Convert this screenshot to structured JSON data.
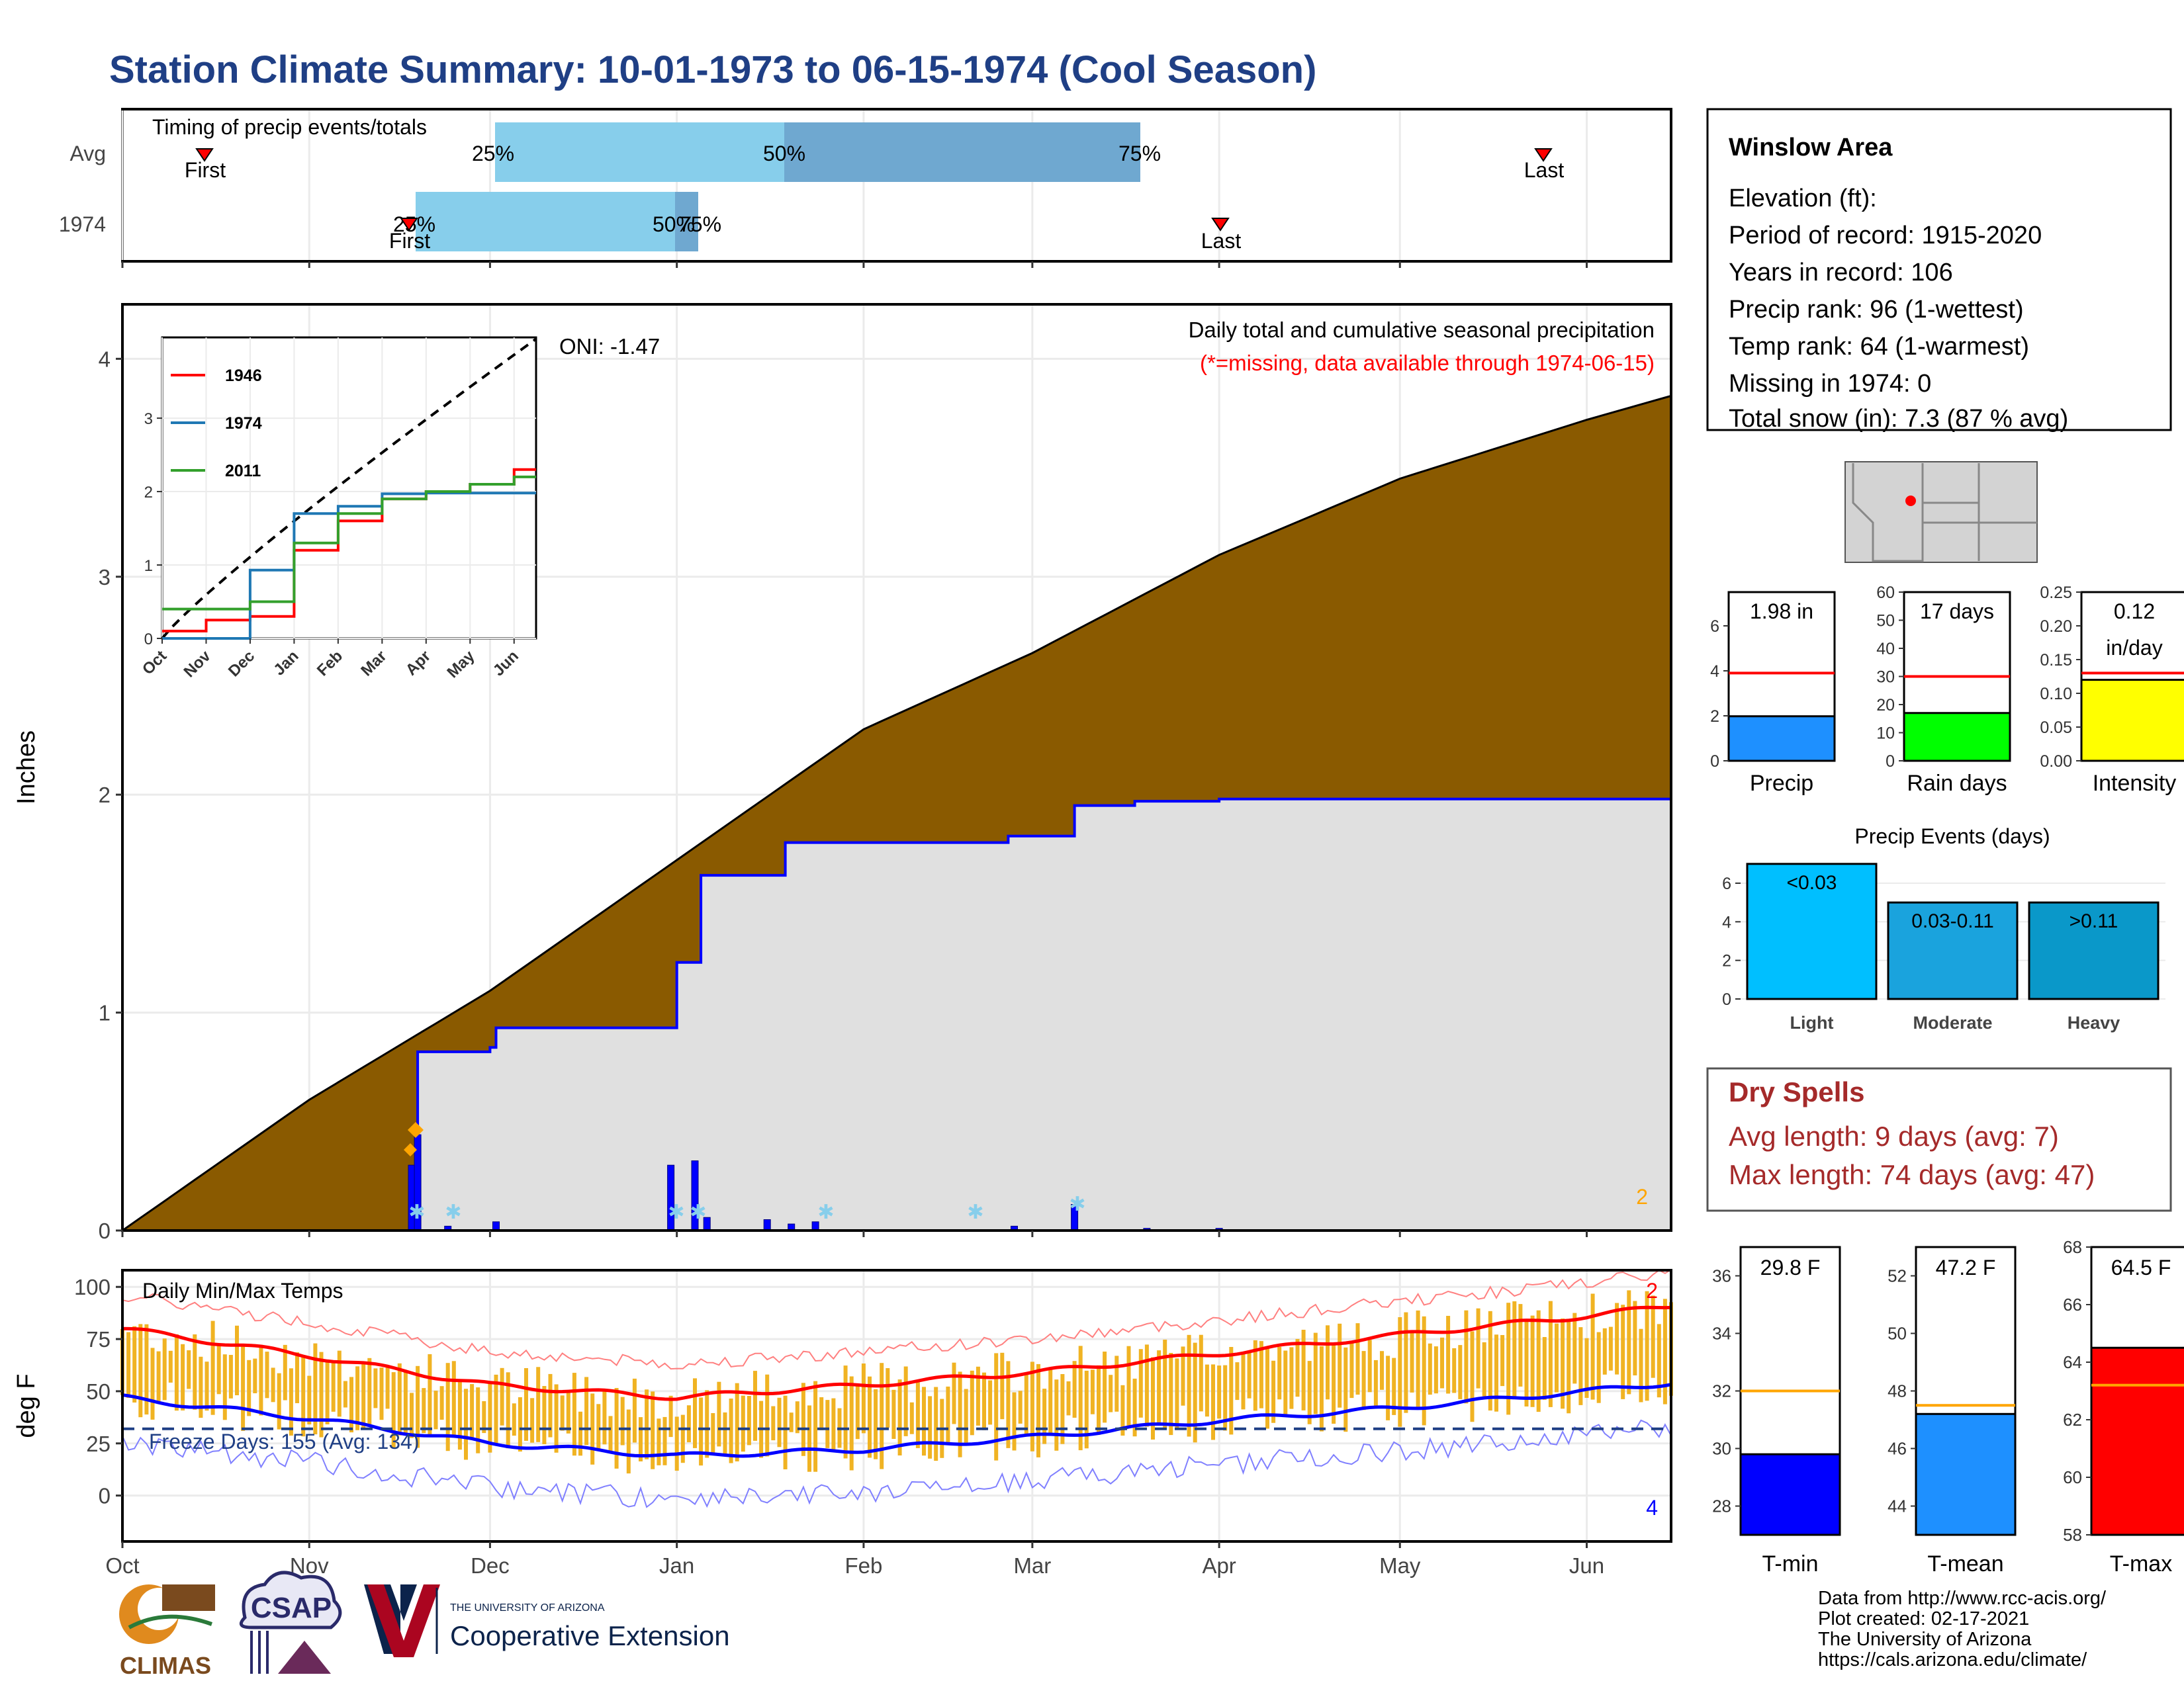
{
  "title": "Station Climate Summary: 10-01-1973 to 06-15-1974 (Cool Season)",
  "colors": {
    "title": "#1f3f85",
    "brown": "#8a5a00",
    "gray_fill": "#e0e0e0",
    "blue": "#0000ff",
    "light_blue": "#87ceeb",
    "steel_blue": "#6fa8d0",
    "red": "#ff0000",
    "orange": "#ffa500",
    "temp_bar": "#f0b323",
    "dark_red": "#a52a2a",
    "green": "#00ff00",
    "yellow": "#ffff00",
    "deep_sky": "#00bfff",
    "dodger": "#1e90ff"
  },
  "timing_panel": {
    "label": "Timing of precip events/totals",
    "rows": [
      "Avg",
      "1974"
    ],
    "avg": {
      "q25": "25%",
      "q50": "50%",
      "q75": "75%",
      "first": "First",
      "last": "Last"
    },
    "y1974": {
      "q25": "25%",
      "q50": "50%",
      "q75": "75%",
      "first": "First",
      "last": "Last"
    }
  },
  "precip_panel": {
    "ylabel": "Inches",
    "y_ticks": [
      "0",
      "1",
      "2",
      "3",
      "4"
    ],
    "annotation_title": "Daily total and cumulative seasonal precipitation",
    "annotation_missing": "(*=missing, data available through 1974-06-15)",
    "corner_count": "2",
    "oni": "ONI: -1.47"
  },
  "inset": {
    "legend": [
      "1946",
      "1974",
      "2011"
    ],
    "legend_colors": [
      "#ff0000",
      "#1f78b4",
      "#33a02c"
    ],
    "y_ticks": [
      "0",
      "1",
      "2",
      "3"
    ],
    "x_ticks": [
      "Oct",
      "Nov",
      "Dec",
      "Jan",
      "Feb",
      "Mar",
      "Apr",
      "May",
      "Jun"
    ]
  },
  "temp_panel": {
    "ylabel": "deg F",
    "title": "Daily Min/Max Temps",
    "freeze_days": "Freeze Days: 155 (Avg: 134)",
    "y_ticks": [
      "0",
      "25",
      "50",
      "75",
      "100"
    ],
    "corner_max": "2",
    "corner_min": "4"
  },
  "x_axis_months": [
    "Oct",
    "Nov",
    "Dec",
    "Jan",
    "Feb",
    "Mar",
    "Apr",
    "May",
    "Jun"
  ],
  "station_info": {
    "name": "Winslow Area",
    "elevation": "Elevation (ft):",
    "period": "Period of record: 1915-2020",
    "years": "Years in record: 106",
    "precip_rank": "Precip rank: 96 (1-wettest)",
    "temp_rank": "Temp rank: 64 (1-warmest)",
    "missing": "Missing in 1974: 0",
    "snow": "Total snow (in): 7.3 (87 % avg)"
  },
  "mini_bars": [
    {
      "label": "Precip",
      "value_text": "1.98 in",
      "value": 1.98,
      "avg": 3.9,
      "ymax": 7.5,
      "ticks": [
        "0",
        "2",
        "4",
        "6"
      ],
      "tick_values": [
        0,
        2,
        4,
        6
      ]
    },
    {
      "label": "Rain days",
      "value_text": "17 days",
      "value": 17,
      "avg": 30,
      "ymax": 60,
      "ticks": [
        "0",
        "10",
        "20",
        "30",
        "40",
        "50",
        "60"
      ],
      "tick_values": [
        0,
        10,
        20,
        30,
        40,
        50,
        60
      ]
    },
    {
      "label": "Intensity",
      "value_text": "0.12",
      "value_text2": "in/day",
      "value": 0.12,
      "avg": 0.13,
      "ymax": 0.25,
      "ticks": [
        "0.00",
        "0.05",
        "0.10",
        "0.15",
        "0.20",
        "0.25"
      ],
      "tick_values": [
        0,
        0.05,
        0.1,
        0.15,
        0.2,
        0.25
      ]
    }
  ],
  "precip_events": {
    "title": "Precip Events (days)",
    "ticks": [
      "0",
      "2",
      "4",
      "6"
    ],
    "bars": [
      {
        "category": "Light",
        "label": "<0.03",
        "value": 7
      },
      {
        "category": "Moderate",
        "label": "0.03-0.11",
        "value": 5
      },
      {
        "category": "Heavy",
        "label": ">0.11",
        "value": 5
      }
    ]
  },
  "dry_spells": {
    "title": "Dry Spells",
    "avg_length": "Avg length: 9 days (avg: 7)",
    "max_length": "Max length: 74 days (avg: 47)"
  },
  "temp_bars": [
    {
      "label": "T-min",
      "value_text": "29.8 F",
      "value": 29.8,
      "avg": 32.0,
      "ymin": 27,
      "ymax": 37,
      "ticks": [
        "28",
        "30",
        "32",
        "34",
        "36"
      ],
      "tick_values": [
        28,
        30,
        32,
        34,
        36
      ]
    },
    {
      "label": "T-mean",
      "value_text": "47.2 F",
      "value": 47.2,
      "avg": 47.5,
      "ymin": 43,
      "ymax": 53,
      "ticks": [
        "44",
        "46",
        "48",
        "50",
        "52"
      ],
      "tick_values": [
        44,
        46,
        48,
        50,
        52
      ]
    },
    {
      "label": "T-max",
      "value_text": "64.5 F",
      "value": 64.5,
      "avg": 63.2,
      "ymin": 58,
      "ymax": 68,
      "ticks": [
        "58",
        "60",
        "62",
        "64",
        "66",
        "68"
      ],
      "tick_values": [
        58,
        60,
        62,
        64,
        66,
        68
      ]
    }
  ],
  "footer": {
    "line1": "Data from http://www.rcc-acis.org/",
    "line2": "Plot created: 02-17-2021",
    "line3": "The University of Arizona",
    "line4": "https://cals.arizona.edu/climate/"
  },
  "logos": {
    "climas": "CLIMAS",
    "csap": "CSAP",
    "ua_small": "THE UNIVERSITY OF ARIZONA",
    "ua_large": "Cooperative Extension"
  },
  "chart_data": [
    {
      "type": "area",
      "title": "Daily total and cumulative seasonal precipitation",
      "ylabel": "Inches",
      "ylim": [
        0,
        4.2
      ],
      "x_range": [
        "1973-10-01",
        "1974-06-15"
      ],
      "series": [
        {
          "name": "",
          "x": [
            "1973-10-01",
            "1973-11-01",
            "1973-12-01",
            "1974-01-01",
            "1974-02-01",
            "1974-03-01",
            "1974-04-01",
            "1974-05-01",
            "1974-06-01",
            "1974-06-15"
          ],
          "values": [
            0.0,
            0.6,
            1.1,
            1.7,
            2.3,
            2.65,
            3.1,
            3.45,
            3.72,
            3.83
          ]
        },
        {
          "name": "1974",
          "x": [
            "1973-10-01",
            "1973-11-18",
            "1973-11-19",
            "1973-12-01",
            "1973-12-02",
            "1973-12-31",
            "1974-01-01",
            "1974-01-05",
            "1974-01-15",
            "1974-01-19",
            "1974-02-25",
            "1974-03-08",
            "1974-03-18",
            "1974-04-01",
            "1974-06-15"
          ],
          "values": [
            0.0,
            0.0,
            0.82,
            0.84,
            0.93,
            0.93,
            1.23,
            1.63,
            1.63,
            1.78,
            1.81,
            1.95,
            1.97,
            1.98,
            1.98
          ]
        }
      ],
      "daily_bars": {
        "x": [
          "1973-11-18",
          "1973-11-19",
          "1973-11-24",
          "1973-12-02",
          "1973-12-31",
          "1974-01-04",
          "1974-01-06",
          "1974-01-16",
          "1974-01-20",
          "1974-01-24",
          "1974-02-26",
          "1974-03-08",
          "1974-03-20",
          "1974-04-01"
        ],
        "values": [
          0.3,
          0.44,
          0.02,
          0.04,
          0.3,
          0.32,
          0.06,
          0.05,
          0.03,
          0.04,
          0.02,
          0.12,
          0.01,
          0.01
        ]
      }
    },
    {
      "type": "line",
      "title": "Daily Min/Max Temps",
      "ylabel": "deg F",
      "ylim": [
        -20,
        110
      ],
      "series": [
        {
          "name": "",
          "x": [
            "1973-10-01",
            "1973-11-01",
            "1973-12-01",
            "1974-01-01",
            "1974-02-01",
            "1974-03-01",
            "1974-04-01",
            "1974-05-01",
            "1974-06-01",
            "1974-06-15"
          ],
          "values": [
            80,
            67,
            53,
            47,
            53,
            59,
            68,
            77,
            86,
            91
          ]
        },
        {
          "name": "",
          "x": [
            "1973-10-01",
            "1973-11-01",
            "1973-12-01",
            "1974-01-01",
            "1974-02-01",
            "1974-03-01",
            "1974-04-01",
            "1974-05-01",
            "1974-06-01",
            "1974-06-15"
          ],
          "values": [
            47,
            37,
            25,
            19,
            22,
            28,
            36,
            42,
            50,
            54
          ]
        }
      ]
    },
    {
      "type": "line",
      "x": [
        "Oct",
        "Nov",
        "Dec",
        "Jan",
        "Feb",
        "Mar",
        "Apr",
        "May",
        "Jun"
      ],
      "ylim": [
        0,
        4.1
      ],
      "series": [
        {
          "name": "1946",
          "values": [
            0.1,
            0.25,
            0.3,
            1.2,
            1.6,
            1.9,
            2.0,
            2.1,
            2.3
          ]
        },
        {
          "name": "1974",
          "values": [
            0.0,
            0.0,
            0.93,
            1.7,
            1.8,
            1.97,
            1.98,
            1.98,
            1.98
          ]
        },
        {
          "name": "2011",
          "values": [
            0.4,
            0.4,
            0.5,
            1.3,
            1.7,
            1.9,
            2.0,
            2.1,
            2.2
          ]
        }
      ]
    }
  ]
}
